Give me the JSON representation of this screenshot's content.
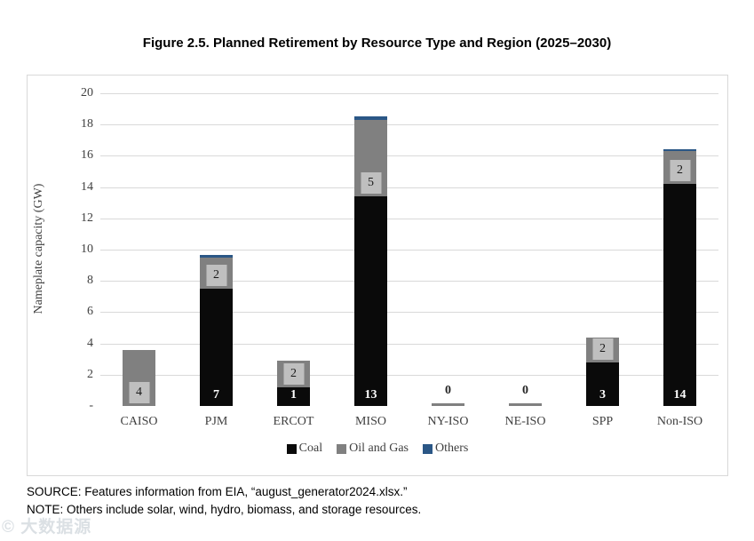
{
  "title": "Figure 2.5. Planned Retirement by Resource Type and Region (2025–2030)",
  "source": "SOURCE: Features information from EIA, “august_generator2024.xlsx.”",
  "note": "NOTE: Others include solar, wind, hydro, biomass, and storage resources.",
  "watermark": "© 大数据源",
  "chart_data": {
    "type": "bar",
    "stacked": true,
    "title": "Figure 2.5. Planned Retirement by Resource Type and Region (2025–2030)",
    "categories": [
      "CAISO",
      "PJM",
      "ERCOT",
      "MISO",
      "NY-ISO",
      "NE-ISO",
      "SPP",
      "Non-ISO"
    ],
    "series": [
      {
        "name": "Coal",
        "color": "#0a0a0a",
        "values": [
          0,
          7.5,
          1.2,
          13.4,
          0,
          0,
          2.8,
          14.2
        ],
        "labels": [
          "",
          "7",
          "1",
          "13",
          "",
          "",
          "3",
          "14"
        ]
      },
      {
        "name": "Oil and Gas",
        "color": "#808080",
        "values": [
          3.6,
          2.0,
          1.7,
          4.9,
          0.15,
          0.15,
          1.6,
          2.1
        ],
        "labels": [
          "4",
          "2",
          "2",
          "5",
          "",
          "",
          "2",
          "2"
        ]
      },
      {
        "name": "Others",
        "color": "#2b5786",
        "values": [
          0,
          0.15,
          0,
          0.2,
          0,
          0,
          0,
          0.15
        ],
        "labels": [
          "",
          "",
          "",
          "",
          "",
          "",
          "",
          ""
        ]
      }
    ],
    "zero_labels": [
      "",
      "",
      "",
      "",
      "0",
      "0",
      "",
      ""
    ],
    "xlabel": "",
    "ylabel": "Nameplate capacity (GW)",
    "ylim": [
      0,
      20
    ],
    "ytick_labels": [
      "20",
      "18",
      "16",
      "14",
      "12",
      "10",
      "8",
      "6",
      "4",
      "2",
      "-"
    ],
    "grid": true,
    "legend_position": "bottom",
    "legend": [
      "Coal",
      "Oil and Gas",
      "Others"
    ],
    "colors": {
      "gridline": "#d9d9d9",
      "axis_text": "#404040",
      "label_box_fill": "#bfbfbf",
      "coal": "#0a0a0a",
      "oil_and_gas": "#808080",
      "others": "#2b5786"
    }
  }
}
